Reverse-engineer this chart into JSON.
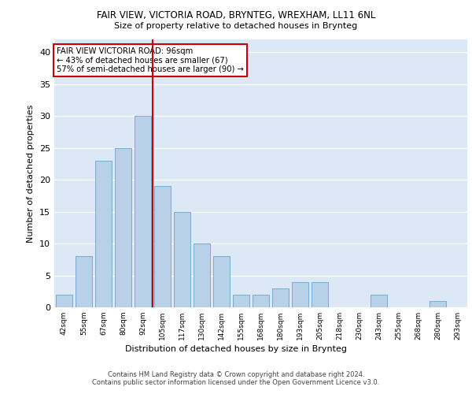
{
  "title1": "FAIR VIEW, VICTORIA ROAD, BRYNTEG, WREXHAM, LL11 6NL",
  "title2": "Size of property relative to detached houses in Brynteg",
  "xlabel": "Distribution of detached houses by size in Brynteg",
  "ylabel": "Number of detached properties",
  "categories": [
    "42sqm",
    "55sqm",
    "67sqm",
    "80sqm",
    "92sqm",
    "105sqm",
    "117sqm",
    "130sqm",
    "142sqm",
    "155sqm",
    "168sqm",
    "180sqm",
    "193sqm",
    "205sqm",
    "218sqm",
    "230sqm",
    "243sqm",
    "255sqm",
    "268sqm",
    "280sqm",
    "293sqm"
  ],
  "values": [
    2,
    8,
    23,
    25,
    30,
    19,
    15,
    10,
    8,
    2,
    2,
    3,
    4,
    4,
    0,
    0,
    2,
    0,
    0,
    1,
    0
  ],
  "bar_color": "#b8d0e8",
  "bar_edge_color": "#7aabcf",
  "vline_color": "#cc0000",
  "annotation_text": "FAIR VIEW VICTORIA ROAD: 96sqm\n← 43% of detached houses are smaller (67)\n57% of semi-detached houses are larger (90) →",
  "annotation_box_color": "#ffffff",
  "annotation_box_edge": "#cc0000",
  "footer": "Contains HM Land Registry data © Crown copyright and database right 2024.\nContains public sector information licensed under the Open Government Licence v3.0.",
  "ylim": [
    0,
    42
  ],
  "yticks": [
    0,
    5,
    10,
    15,
    20,
    25,
    30,
    35,
    40
  ],
  "background_color": "#dce8f5",
  "grid_color": "#ffffff"
}
